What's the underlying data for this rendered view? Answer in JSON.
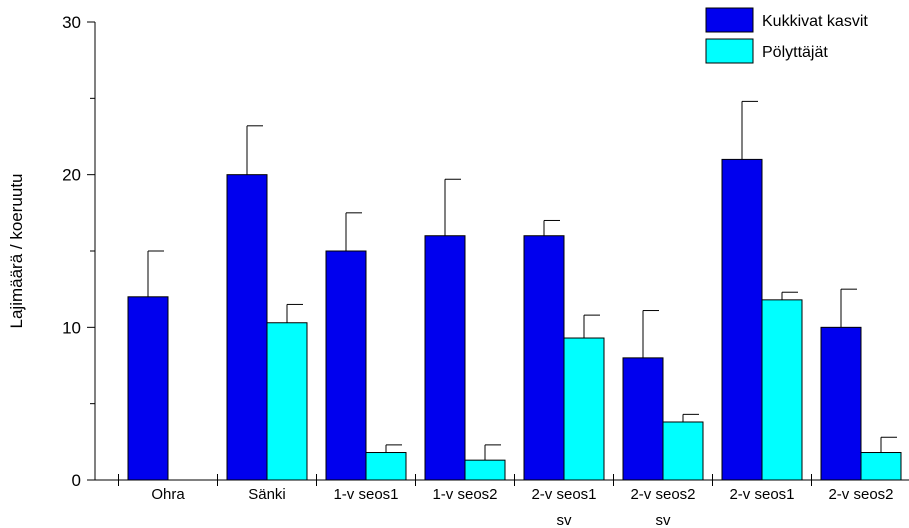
{
  "chart_data": {
    "type": "bar",
    "title": "",
    "xlabel": "",
    "ylabel": "Lajimäärä / koeruutu",
    "ylim": [
      0,
      30
    ],
    "yticks": [
      0,
      10,
      20,
      30
    ],
    "minor_yticks": [
      5,
      15,
      25
    ],
    "grid": false,
    "legend_position": "top-right",
    "categories": [
      [
        "Ohra"
      ],
      [
        "Sänki"
      ],
      [
        "1-v seos1"
      ],
      [
        "1-v seos2"
      ],
      [
        "2-v seos1",
        "sv"
      ],
      [
        "2-v seos2",
        "sv"
      ],
      [
        "2-v seos1"
      ],
      [
        "2-v seos2"
      ]
    ],
    "series": [
      {
        "name": "Kukkivat kasvit",
        "color": "#0000ee",
        "values": [
          12,
          20,
          15,
          16,
          16,
          8,
          21,
          10
        ],
        "error_upper": [
          3.0,
          3.2,
          2.5,
          3.7,
          1.0,
          3.1,
          3.8,
          2.5
        ]
      },
      {
        "name": "Pölyttäjät",
        "color": "#00ffff",
        "values": [
          null,
          10.3,
          1.8,
          1.3,
          9.3,
          3.8,
          11.8,
          1.8
        ],
        "error_upper": [
          null,
          1.2,
          0.5,
          1.0,
          1.5,
          0.5,
          0.5,
          1.0
        ]
      }
    ]
  }
}
